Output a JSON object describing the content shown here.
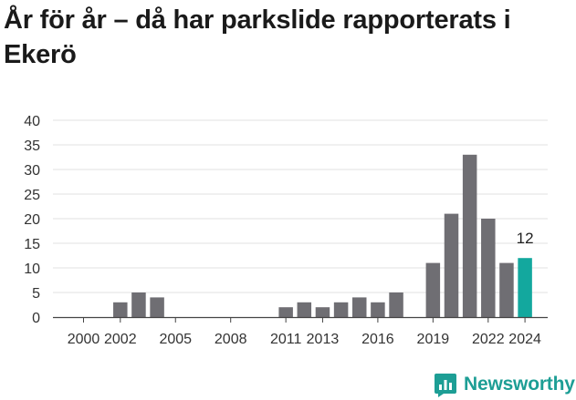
{
  "title": "År för år – då har parkslide rapporterats i Ekerö",
  "brand": {
    "name": "Newsworthy",
    "logo_icon": "bar-chart-badge-icon"
  },
  "colors": {
    "bar": "#6f6e73",
    "highlight": "#13a89e",
    "grid": "#e0e0e0",
    "axis": "#444444",
    "brand": "#1d9e95"
  },
  "chart_data": {
    "type": "bar",
    "title": "År för år – då har parkslide rapporterats i Ekerö",
    "xlabel": "",
    "ylabel": "",
    "years": [
      2000,
      2001,
      2002,
      2003,
      2004,
      2005,
      2006,
      2007,
      2008,
      2009,
      2010,
      2011,
      2012,
      2013,
      2014,
      2015,
      2016,
      2017,
      2018,
      2019,
      2020,
      2021,
      2022,
      2023,
      2024
    ],
    "values": [
      0,
      0,
      3,
      5,
      4,
      0,
      0,
      0,
      0,
      0,
      0,
      2,
      3,
      2,
      3,
      4,
      3,
      5,
      0,
      11,
      21,
      33,
      20,
      11,
      12
    ],
    "x_tick_labels": [
      "2000",
      "2002",
      "2005",
      "2008",
      "2011",
      "2013",
      "2016",
      "2019",
      "2022",
      "2024"
    ],
    "y_ticks": [
      0,
      5,
      10,
      15,
      20,
      25,
      30,
      35,
      40
    ],
    "ylim": [
      0,
      40
    ],
    "grid": true,
    "highlight_year": 2024,
    "data_labels": [
      {
        "year": 2024,
        "text": "12"
      }
    ]
  }
}
